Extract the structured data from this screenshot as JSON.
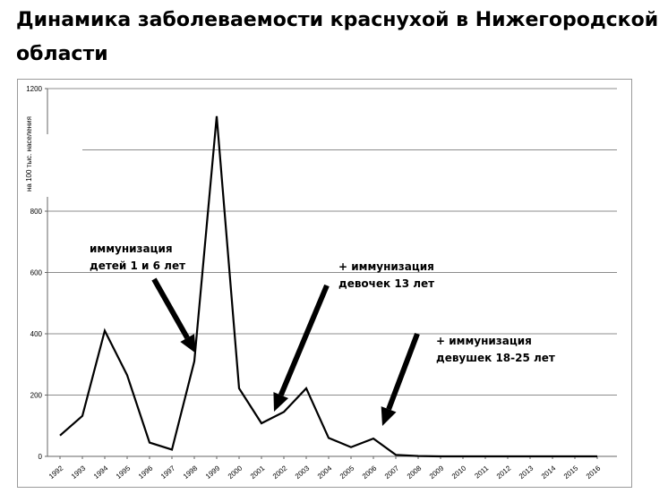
{
  "title": "Динамика заболеваемости краснухой в Нижегородской области",
  "chart_data": {
    "type": "line",
    "title": "Динамика заболеваемости краснухой в Нижегородской области",
    "ylabel": "на 100 тыс. населения",
    "xlabel": "",
    "ylim": [
      0,
      1200
    ],
    "yticks": [
      "0",
      "200",
      "400",
      "600",
      "800",
      "1200"
    ],
    "grid": true,
    "x": [
      "1992",
      "1993",
      "1994",
      "1995",
      "1996",
      "1997",
      "1998",
      "1999",
      "2000",
      "2001",
      "2002",
      "2003",
      "2004",
      "2005",
      "2006",
      "2007",
      "2008",
      "2009",
      "2010",
      "2011",
      "2012",
      "2013",
      "2014",
      "2015",
      "2016"
    ],
    "series": [
      {
        "values": [
          68,
          132,
          410,
          265,
          45,
          22,
          310,
          1110,
          222,
          108,
          145,
          222,
          60,
          30,
          58,
          5,
          1,
          0,
          0,
          0,
          0,
          0,
          0,
          0,
          0
        ]
      }
    ],
    "annotations": [
      {
        "lines": [
          "иммунизация",
          "детей 1  и 6 лет"
        ]
      },
      {
        "lines": [
          "+ иммунизация",
          "девочек 13 лет"
        ]
      },
      {
        "lines": [
          "+ иммунизация",
          "девушек 18-25 лет"
        ]
      }
    ]
  }
}
